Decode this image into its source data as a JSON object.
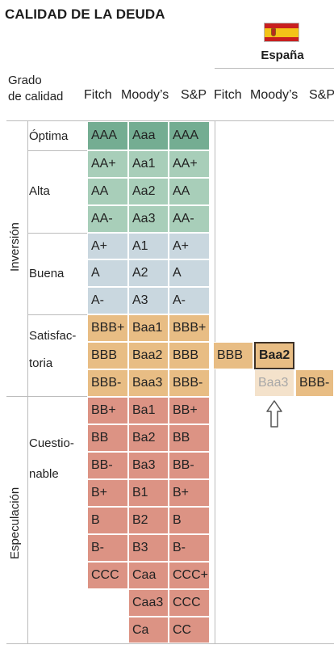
{
  "title": "CALIDAD DE LA DEUDA",
  "country": {
    "name": "España",
    "flag_icon": "spain-flag-icon"
  },
  "headers": {
    "grade_line1": "Grado",
    "grade_line2": "de calidad",
    "fitch": "Fitch",
    "moodys": "Moody’s",
    "sp": "S&P",
    "fitch_right": "Fitch",
    "moodys_right": "Moody’s",
    "sp_right": "S&P"
  },
  "groups": [
    {
      "label": "Inversión"
    },
    {
      "label": "Especulación"
    }
  ],
  "categories": [
    {
      "label": "Óptima"
    },
    {
      "label": "Alta"
    },
    {
      "label": "Buena"
    },
    {
      "label_line1": "Satisfac-",
      "label_line2": "toria"
    },
    {
      "label_line1": "Cuestio-",
      "label_line2": "nable"
    }
  ],
  "colors": {
    "optima": "#74ad92",
    "alta": "#a8ceb9",
    "buena": "#c9d7df",
    "satisfactoria": "#e8bd84",
    "cuestionable": "#dc9384",
    "spain_sp_current": "#f2d7b1",
    "spain_moodys_previous": "#f4e2cb",
    "spain_moodys_border": "#3d3127"
  },
  "chart_data": {
    "type": "table",
    "title": "CALIDAD DE LA DEUDA",
    "columns": [
      "Fitch",
      "Moody’s",
      "S&P"
    ],
    "rows": [
      {
        "category": "Óptima",
        "fitch": "AAA",
        "moodys": "Aaa",
        "sp": "AAA"
      },
      {
        "category": "Alta",
        "fitch": "AA+",
        "moodys": "Aa1",
        "sp": "AA+"
      },
      {
        "category": "Alta",
        "fitch": "AA",
        "moodys": "Aa2",
        "sp": "AA"
      },
      {
        "category": "Alta",
        "fitch": "AA-",
        "moodys": "Aa3",
        "sp": "AA-"
      },
      {
        "category": "Buena",
        "fitch": "A+",
        "moodys": "A1",
        "sp": "A+"
      },
      {
        "category": "Buena",
        "fitch": "A",
        "moodys": "A2",
        "sp": "A"
      },
      {
        "category": "Buena",
        "fitch": "A-",
        "moodys": "A3",
        "sp": "A-"
      },
      {
        "category": "Satisfactoria",
        "fitch": "BBB+",
        "moodys": "Baa1",
        "sp": "BBB+"
      },
      {
        "category": "Satisfactoria",
        "fitch": "BBB",
        "moodys": "Baa2",
        "sp": "BBB"
      },
      {
        "category": "Satisfactoria",
        "fitch": "BBB-",
        "moodys": "Baa3",
        "sp": "BBB-"
      },
      {
        "category": "Cuestionable",
        "fitch": "BB+",
        "moodys": "Ba1",
        "sp": "BB+"
      },
      {
        "category": "Cuestionable",
        "fitch": "BB",
        "moodys": "Ba2",
        "sp": "BB"
      },
      {
        "category": "Cuestionable",
        "fitch": "BB-",
        "moodys": "Ba3",
        "sp": "BB-"
      },
      {
        "category": "Cuestionable",
        "fitch": "B+",
        "moodys": "B1",
        "sp": "B+"
      },
      {
        "category": "Cuestionable",
        "fitch": "B",
        "moodys": "B2",
        "sp": "B"
      },
      {
        "category": "Cuestionable",
        "fitch": "B-",
        "moodys": "B3",
        "sp": "B-"
      },
      {
        "category": "Cuestionable",
        "fitch": "CCC",
        "moodys": "Caa",
        "sp": "CCC+"
      },
      {
        "category": "Cuestionable",
        "fitch": "",
        "moodys": "Caa3",
        "sp": "CCC"
      },
      {
        "category": "Cuestionable",
        "fitch": "",
        "moodys": "Ca",
        "sp": "CC"
      }
    ],
    "spain": {
      "fitch": "BBB",
      "moodys_current": "Baa2",
      "moodys_previous": "Baa3",
      "sp": "BBB-"
    }
  }
}
